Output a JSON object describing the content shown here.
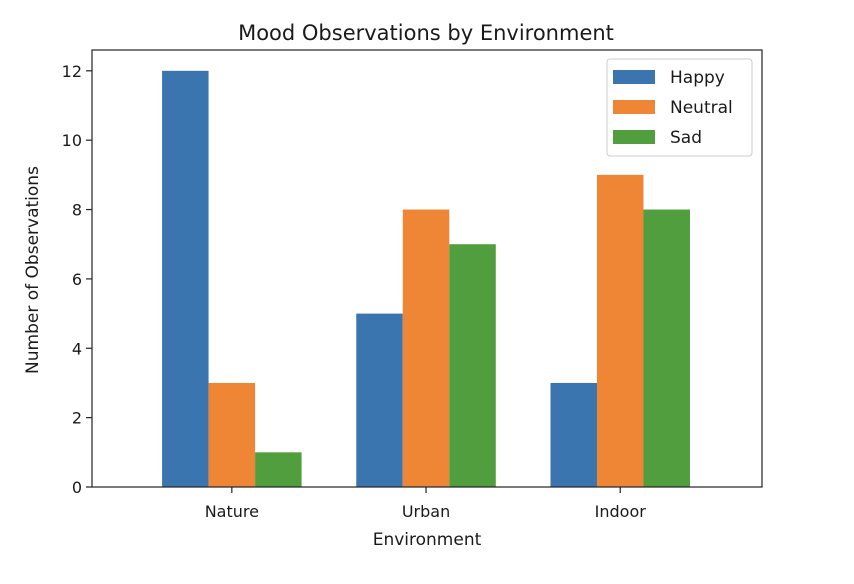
{
  "chart_data": {
    "type": "bar",
    "title": "Mood Observations by Environment",
    "xlabel": "Environment",
    "ylabel": "Number of Observations",
    "categories": [
      "Nature",
      "Urban",
      "Indoor"
    ],
    "series": [
      {
        "name": "Happy",
        "values": [
          12,
          5,
          3
        ],
        "color": "#3a75b0"
      },
      {
        "name": "Neutral",
        "values": [
          3,
          8,
          9
        ],
        "color": "#ef8636"
      },
      {
        "name": "Sad",
        "values": [
          1,
          7,
          8
        ],
        "color": "#519e3e"
      }
    ],
    "ylim": [
      0,
      12.6
    ],
    "yticks": [
      "0",
      "2",
      "4",
      "6",
      "8",
      "10",
      "12"
    ],
    "grid": false,
    "legend": "top-right"
  }
}
